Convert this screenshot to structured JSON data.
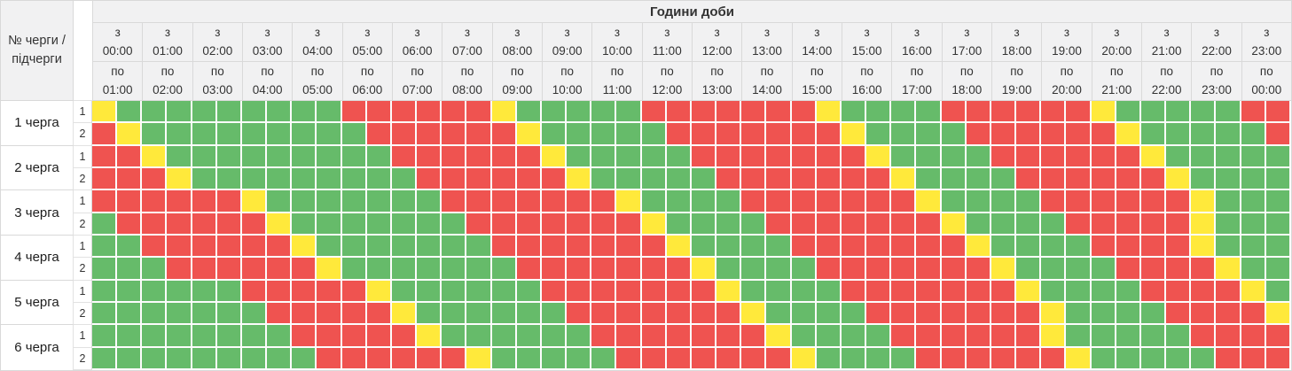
{
  "colors": {
    "green": "#66BB6A",
    "red": "#EF5350",
    "yellow": "#FFE93B"
  },
  "header": {
    "corner_label": "№ черги / підчерги",
    "title": "Години доби",
    "from_prefix": "з",
    "to_prefix": "по",
    "hours_from": [
      "00:00",
      "01:00",
      "02:00",
      "03:00",
      "04:00",
      "05:00",
      "06:00",
      "07:00",
      "08:00",
      "09:00",
      "10:00",
      "11:00",
      "12:00",
      "13:00",
      "14:00",
      "15:00",
      "16:00",
      "17:00",
      "18:00",
      "19:00",
      "20:00",
      "21:00",
      "22:00",
      "23:00"
    ],
    "hours_to": [
      "01:00",
      "02:00",
      "03:00",
      "04:00",
      "05:00",
      "06:00",
      "07:00",
      "08:00",
      "09:00",
      "10:00",
      "11:00",
      "12:00",
      "13:00",
      "14:00",
      "15:00",
      "16:00",
      "17:00",
      "18:00",
      "19:00",
      "20:00",
      "21:00",
      "22:00",
      "23:00",
      "00:00"
    ]
  },
  "chart_data": {
    "type": "heatmap",
    "title": "Години доби",
    "x_unit_minutes": 30,
    "cell_codes": {
      "G": "green",
      "R": "red",
      "Y": "yellow"
    },
    "note": "48 half-hour cells per row, 00:00-24:00"
  },
  "queues": [
    {
      "label": "1 черга",
      "rows": [
        {
          "sub": "1",
          "cells": "YGGGGGGGGGRRRRRRYGGGGGRRRRRRRYGGGGRRRRRRYGGGGGRR"
        },
        {
          "sub": "2",
          "cells": "RYGGGGGGGGGRRRRRRYGGGGGRRRRRRRYGGGGRRRRRRYGGGGGR"
        }
      ]
    },
    {
      "label": "2 черга",
      "rows": [
        {
          "sub": "1",
          "cells": "RRYGGGGGGGGGRRRRRRYGGGGGRRRRRRRYGGGGRRRRRRYGGGGG"
        },
        {
          "sub": "2",
          "cells": "RRRYGGGGGGGGGRRRRRRYGGGGGRRRRRRRYGGGGRRRRRRYGGGG"
        }
      ]
    },
    {
      "label": "3 черга",
      "rows": [
        {
          "sub": "1",
          "cells": "RRRRRRYGGGGGGGRRRRRRRYGGGGRRRRRRRYGGGGRRRRRRYGGG"
        },
        {
          "sub": "2",
          "cells": "GRRRRRRYGGGGGGGRRRRRRRYGGGGRRRRRRRYGGGGRRRRRYGGG"
        }
      ]
    },
    {
      "label": "4 черга",
      "rows": [
        {
          "sub": "1",
          "cells": "GGRRRRRRYGGGGGGGRRRRRRRYGGGGRRRRRRRYGGGGRRRRYGGG"
        },
        {
          "sub": "2",
          "cells": "GGGRRRRRRYGGGGGGGRRRRRRRYGGGGRRRRRRRYGGGGRRRRYGG"
        }
      ]
    },
    {
      "label": "5 черга",
      "rows": [
        {
          "sub": "1",
          "cells": "GGGGGGRRRRRYGGGGGGRRRRRRRYGGGGRRRRRRRYGGGGRRRRYG"
        },
        {
          "sub": "2",
          "cells": "GGGGGGGRRRRRYGGGGGGRRRRRRRYGGGGRRRRRRRYGGGGRRRRY"
        }
      ]
    },
    {
      "label": "6 черга",
      "rows": [
        {
          "sub": "1",
          "cells": "GGGGGGGGRRRRRYGGGGGGRRRRRRRYGGGGRRRRRRYGGGGGRRRR"
        },
        {
          "sub": "2",
          "cells": "GGGGGGGGGRRRRRRYGGGGGRRRRRRRYGGGGRRRRRRYGGGGGRRR"
        }
      ]
    }
  ]
}
